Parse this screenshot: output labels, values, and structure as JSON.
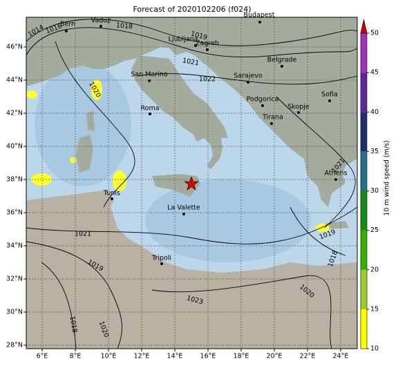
{
  "map": {
    "title": "Forecast of 2020102206 (f024)",
    "lon_ticks": [
      {
        "value": 6,
        "label": "6°E"
      },
      {
        "value": 8,
        "label": "8°E"
      },
      {
        "value": 10,
        "label": "10°E"
      },
      {
        "value": 12,
        "label": "12°E"
      },
      {
        "value": 14,
        "label": "14°E"
      },
      {
        "value": 16,
        "label": "16°E"
      },
      {
        "value": 18,
        "label": "18°E"
      },
      {
        "value": 20,
        "label": "20°E"
      },
      {
        "value": 22,
        "label": "22°E"
      },
      {
        "value": 24,
        "label": "24°E"
      }
    ],
    "lat_ticks": [
      {
        "value": 28,
        "label": "28°N"
      },
      {
        "value": 30,
        "label": "30°N"
      },
      {
        "value": 32,
        "label": "32°N"
      },
      {
        "value": 34,
        "label": "34°N"
      },
      {
        "value": 36,
        "label": "36°N"
      },
      {
        "value": 38,
        "label": "38°N"
      },
      {
        "value": 40,
        "label": "40°N"
      },
      {
        "value": 42,
        "label": "42°N"
      },
      {
        "value": 44,
        "label": "44°N"
      },
      {
        "value": 46,
        "label": "46°N"
      }
    ],
    "cities": [
      "Bern",
      "Vaduz",
      "Ljubljana",
      "Zagreb",
      "Budapest",
      "San Marino",
      "Sarajevo",
      "Belgrade",
      "Roma",
      "Podgorica",
      "Skopje",
      "Sofia",
      "Tirana",
      "Athens",
      "Tunis",
      "La Valette",
      "Tripoli"
    ],
    "isobar_labels": [
      1014,
      1016,
      1018,
      1019,
      1021,
      1022,
      1020,
      1021,
      1019,
      1023,
      1020,
      1018,
      1020,
      1019,
      1018,
      1021
    ],
    "colorbar": {
      "label": "10 m wind speed (m/s)",
      "ticks": [
        10,
        15,
        20,
        25,
        30,
        35,
        40,
        45,
        50
      ],
      "colors": [
        "#ffff00",
        "#9acd32",
        "#33b000",
        "#138a13",
        "#2a6e8c",
        "#1f2f6e",
        "#5a2a9c",
        "#a034b8"
      ],
      "extend_color": "#d40000"
    }
  }
}
